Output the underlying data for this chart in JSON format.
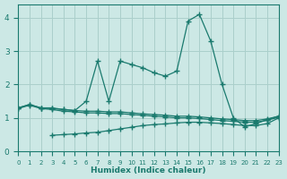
{
  "background_color": "#cce8e5",
  "grid_color": "#aacfcb",
  "line_color": "#1a7a6e",
  "xlim": [
    0,
    23
  ],
  "ylim": [
    0,
    4.4
  ],
  "xticks": [
    0,
    1,
    2,
    3,
    4,
    5,
    6,
    7,
    8,
    9,
    10,
    11,
    12,
    13,
    14,
    15,
    16,
    17,
    18,
    19,
    20,
    21,
    22,
    23
  ],
  "yticks": [
    0,
    1,
    2,
    3,
    4
  ],
  "xlabel": "Humidex (Indice chaleur)",
  "series": [
    {
      "x": [
        0,
        1,
        2,
        3,
        4,
        5,
        6,
        7,
        8,
        9,
        10,
        11,
        12,
        13,
        14,
        15,
        16,
        17,
        18,
        19,
        20,
        21,
        22,
        23
      ],
      "y": [
        1.3,
        1.4,
        1.3,
        1.28,
        1.25,
        1.22,
        1.2,
        1.2,
        1.18,
        1.18,
        1.15,
        1.12,
        1.1,
        1.08,
        1.05,
        1.05,
        1.03,
        1.0,
        0.97,
        0.95,
        0.92,
        0.92,
        0.97,
        1.05
      ]
    },
    {
      "x": [
        0,
        1,
        2,
        3,
        4,
        5,
        6,
        7,
        8,
        9,
        10,
        11,
        12,
        13,
        14,
        15,
        16,
        17,
        18,
        19,
        20,
        21,
        22,
        23
      ],
      "y": [
        1.28,
        1.38,
        1.28,
        1.25,
        1.2,
        1.18,
        1.15,
        1.15,
        1.13,
        1.13,
        1.1,
        1.08,
        1.05,
        1.03,
        1.0,
        1.0,
        0.98,
        0.95,
        0.92,
        0.9,
        0.87,
        0.87,
        0.93,
        1.02
      ]
    },
    {
      "x": [
        3,
        4,
        5,
        6,
        7,
        8,
        9,
        10,
        11,
        12,
        13,
        14,
        15,
        16,
        17,
        18,
        19,
        20,
        21,
        22,
        23
      ],
      "y": [
        0.48,
        0.5,
        0.52,
        0.55,
        0.57,
        0.62,
        0.67,
        0.72,
        0.77,
        0.8,
        0.82,
        0.85,
        0.87,
        0.87,
        0.85,
        0.83,
        0.8,
        0.77,
        0.77,
        0.83,
        1.0
      ]
    },
    {
      "x": [
        0,
        1,
        2,
        3,
        4,
        5,
        6,
        7,
        8,
        9,
        10,
        11,
        12,
        13,
        14,
        15,
        16,
        17,
        18,
        19,
        20,
        21,
        22,
        23
      ],
      "y": [
        1.3,
        1.4,
        1.3,
        1.3,
        1.25,
        1.22,
        1.5,
        2.7,
        1.5,
        2.7,
        2.6,
        2.5,
        2.35,
        2.25,
        2.4,
        3.9,
        4.1,
        3.3,
        2.0,
        1.0,
        0.73,
        0.83,
        0.95,
        1.05
      ]
    }
  ]
}
